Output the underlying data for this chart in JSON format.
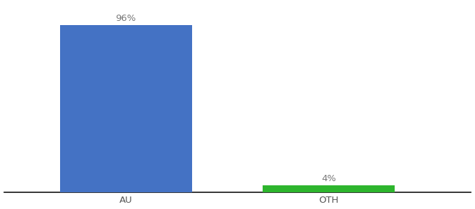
{
  "categories": [
    "AU",
    "OTH"
  ],
  "values": [
    96,
    4
  ],
  "bar_colors": [
    "#4472c4",
    "#2db52d"
  ],
  "label_texts": [
    "96%",
    "4%"
  ],
  "background_color": "#ffffff",
  "ylim": [
    0,
    108
  ],
  "bar_width": 0.65,
  "figsize": [
    6.8,
    3.0
  ],
  "dpi": 100,
  "label_fontsize": 9.5,
  "tick_fontsize": 9.5,
  "tick_color": "#555555",
  "spine_color": "#111111",
  "x_positions": [
    1,
    2
  ]
}
